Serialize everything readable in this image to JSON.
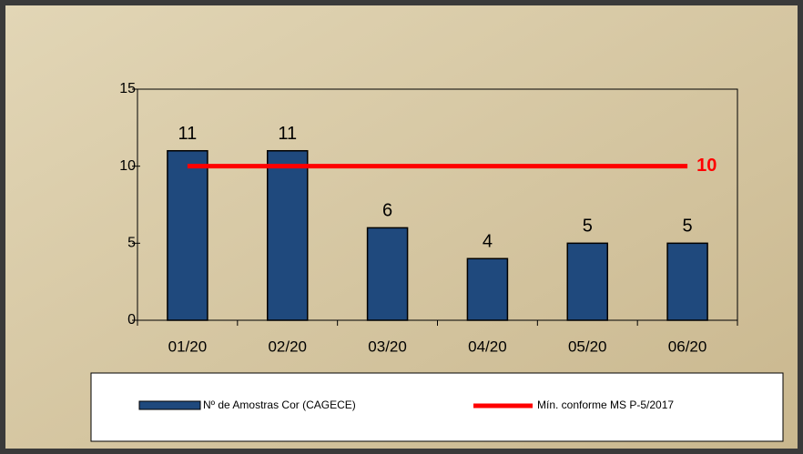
{
  "chart_data": {
    "type": "bar",
    "categories": [
      "01/20",
      "02/20",
      "03/20",
      "04/20",
      "05/20",
      "06/20"
    ],
    "series": [
      {
        "name": "Nº de Amostras Cor (CAGECE)",
        "type": "bar",
        "color": "#1f497d",
        "values": [
          11,
          11,
          6,
          4,
          5,
          5
        ]
      },
      {
        "name": "Mín. conforme MS  P-5/2017",
        "type": "line",
        "color": "#ff0000",
        "values": [
          10,
          10,
          10,
          10,
          10,
          10
        ]
      }
    ],
    "ylim": [
      0,
      15
    ],
    "yticks": [
      0,
      5,
      10,
      15
    ],
    "legend": "bottom"
  }
}
